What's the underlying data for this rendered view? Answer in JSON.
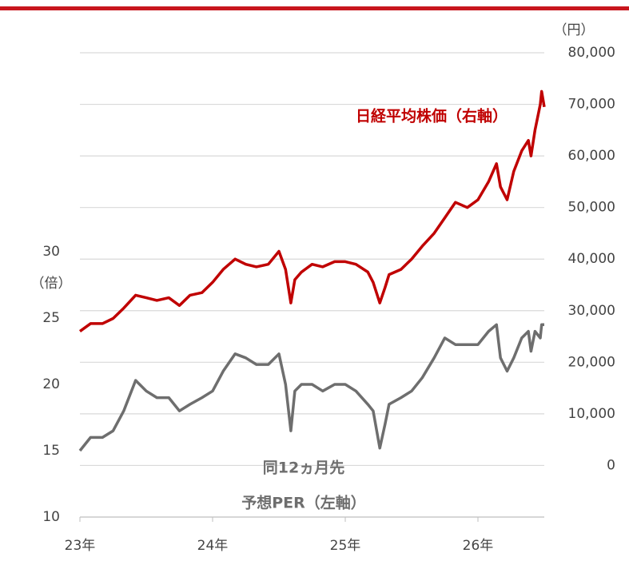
{
  "chart_data": {
    "type": "line",
    "y_unit_label": "（倍）",
    "y2_unit_label": "（円）",
    "annotations": [
      {
        "text": "日経平均株価（右軸）",
        "color": "#c00000"
      },
      {
        "text": "同12ヵ月先",
        "color": "#6e6e6e"
      },
      {
        "text": "予想PER（左軸）",
        "color": "#6e6e6e"
      }
    ],
    "x": [
      23.0,
      23.08,
      23.17,
      23.25,
      23.33,
      23.42,
      23.5,
      23.58,
      23.67,
      23.75,
      23.83,
      23.92,
      24.0,
      24.08,
      24.17,
      24.25,
      24.33,
      24.42,
      24.5,
      24.55,
      24.59,
      24.62,
      24.67,
      24.75,
      24.83,
      24.92,
      25.0,
      25.08,
      25.17,
      25.21,
      25.26,
      25.3,
      25.33,
      25.42,
      25.5,
      25.58,
      25.67,
      25.75,
      25.83,
      25.92,
      26.0,
      26.08,
      26.14,
      26.17,
      26.22,
      26.27,
      26.33,
      26.38,
      26.4,
      26.43,
      26.47,
      26.48,
      26.5
    ],
    "xlim": [
      23,
      26.5
    ],
    "xticks": [
      {
        "value": 23,
        "label": "23年"
      },
      {
        "value": 24,
        "label": "24年"
      },
      {
        "value": 25,
        "label": "25年"
      },
      {
        "value": 26,
        "label": "26年"
      }
    ],
    "ylim": [
      10,
      45
    ],
    "yticks": [
      10,
      15,
      20,
      25,
      30
    ],
    "y2lim": [
      -10000,
      80000
    ],
    "y2ticks": [
      0,
      {
        "value": 10000,
        "label": "10,000"
      },
      {
        "value": 20000,
        "label": "20,000"
      },
      {
        "value": 30000,
        "label": "30,000"
      },
      {
        "value": 40000,
        "label": "40,000"
      },
      {
        "value": 50000,
        "label": "50,000"
      },
      {
        "value": 60000,
        "label": "60,000"
      },
      {
        "value": 70000,
        "label": "70,000"
      },
      {
        "value": 80000,
        "label": "80,000"
      }
    ],
    "grid": true,
    "series": [
      {
        "name": "日経平均株価",
        "color": "#c00000",
        "axis": "y2",
        "values": [
          26000,
          27500,
          27500,
          28500,
          30500,
          33000,
          32500,
          32000,
          32500,
          31000,
          33000,
          33500,
          35500,
          38000,
          40000,
          39000,
          38500,
          39000,
          41500,
          38000,
          31500,
          36000,
          37500,
          39000,
          38500,
          39500,
          39500,
          39000,
          37500,
          35500,
          31500,
          34500,
          37000,
          38000,
          40000,
          42500,
          45000,
          48000,
          51000,
          50000,
          51500,
          55000,
          58500,
          54000,
          51500,
          57000,
          61000,
          63000,
          60000,
          65000,
          70000,
          72500,
          69500
        ]
      },
      {
        "name": "予想PER",
        "color": "#6e6e6e",
        "axis": "y",
        "values": [
          15,
          16,
          16,
          16.5,
          18,
          20.3,
          19.5,
          19,
          19,
          18,
          18.5,
          19,
          19.5,
          21,
          22.3,
          22,
          21.5,
          21.5,
          22.3,
          20,
          16.5,
          19.5,
          20,
          20,
          19.5,
          20,
          20,
          19.5,
          18.5,
          18,
          15.2,
          17,
          18.5,
          19,
          19.5,
          20.5,
          22,
          23.5,
          23,
          23,
          23,
          24,
          24.5,
          22,
          21,
          22,
          23.5,
          24,
          22.5,
          24,
          23.5,
          24.5,
          24.5
        ]
      }
    ]
  }
}
